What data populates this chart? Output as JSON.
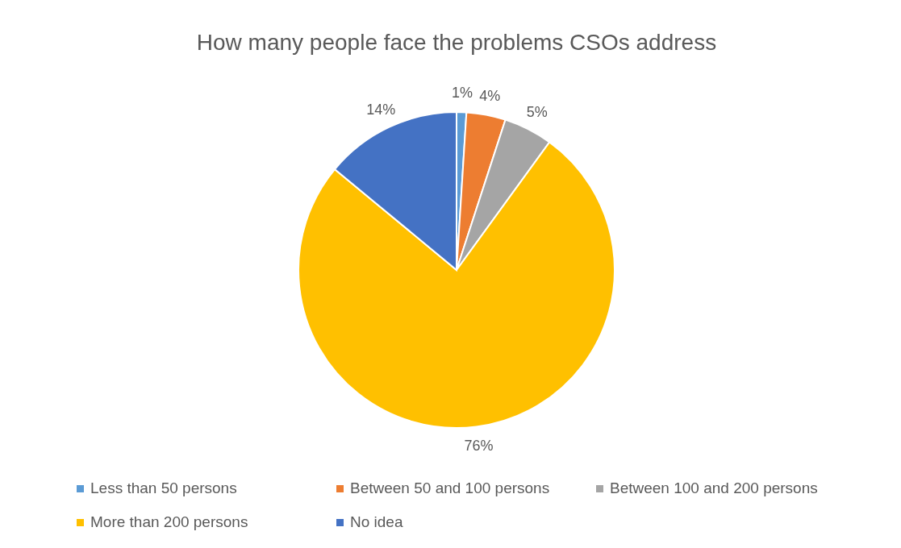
{
  "chart_data": {
    "type": "pie",
    "title": "How many people face the problems CSOs address",
    "categories": [
      "Less than 50 persons",
      "Between 50 and 100 persons",
      "Between 100 and 200 persons",
      "More than 200 persons",
      "No idea"
    ],
    "values": [
      1,
      4,
      5,
      76,
      14
    ],
    "colors": [
      "#5b9bd5",
      "#ed7d31",
      "#a5a5a5",
      "#ffc000",
      "#4472c4"
    ],
    "value_labels": [
      "1%",
      "4%",
      "5%",
      "76%",
      "14%"
    ],
    "legend": "bottom"
  }
}
